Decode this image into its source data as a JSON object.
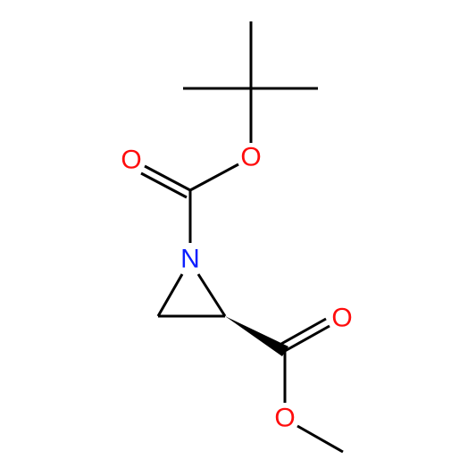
{
  "atoms": [
    "O",
    "O",
    "N",
    "O",
    "O"
  ]
}
